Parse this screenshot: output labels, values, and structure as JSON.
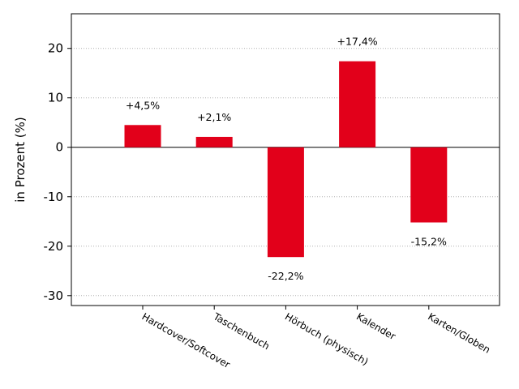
{
  "chart_data": {
    "type": "bar",
    "categories": [
      "Hardcover/Softcover",
      "Taschenbuch",
      "Hörbuch (physisch)",
      "Kalender",
      "Karten/Globen"
    ],
    "values": [
      4.5,
      2.1,
      -22.2,
      17.4,
      -15.2
    ],
    "data_labels": [
      "+4,5%",
      "+2,1%",
      "-22,2%",
      "+17,4%",
      "-15,2%"
    ],
    "title": "",
    "xlabel": "",
    "ylabel": "in Prozent (%)",
    "ylim": [
      -32,
      27
    ],
    "yticks": [
      20,
      10,
      0,
      -10,
      -20,
      -30
    ],
    "ytick_labels": [
      "20",
      "10",
      "0",
      "-10",
      "-20",
      "-30"
    ],
    "grid": "horizontal dotted",
    "bar_color": "#e2001a",
    "zero_line": true
  }
}
